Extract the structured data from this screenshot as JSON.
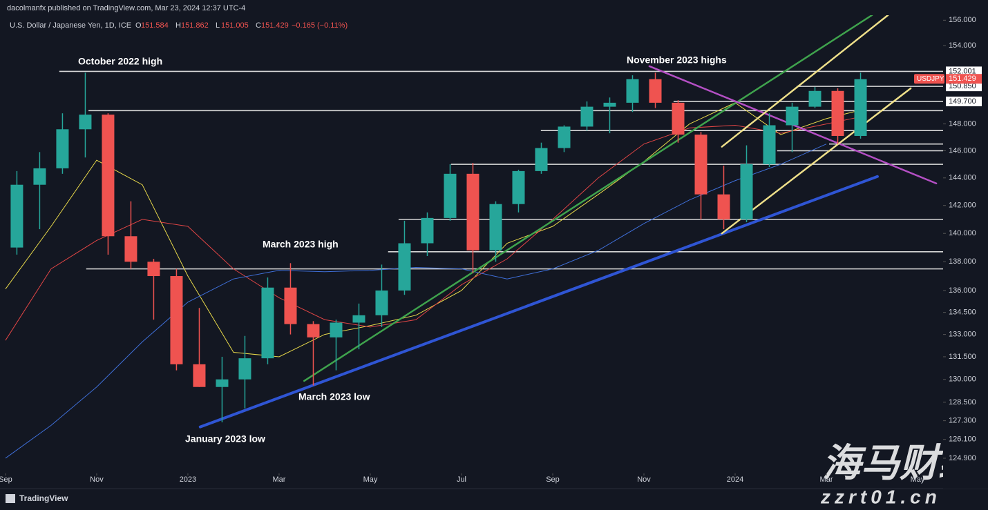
{
  "header": {
    "publisher": "dacolmanfx published on TradingView.com, Mar 23, 2024 12:37 UTC-4",
    "symbol": "U.S. Dollar / Japanese Yen, 1D, ICE",
    "ohlc": [
      {
        "key": "O",
        "value": 151.584
      },
      {
        "key": "H",
        "value": 151.862
      },
      {
        "key": "L",
        "value": 151.005
      },
      {
        "key": "C",
        "value": 151.429
      }
    ],
    "change": "−0.165 (−0.11%)"
  },
  "footer": {
    "brand": "TradingView"
  },
  "watermark": {
    "title": "海马财经",
    "site": "zzrt01.cn"
  },
  "chart_data": {
    "type": "candlestick",
    "log_scale": true,
    "up_color": "#26a69a",
    "down_color": "#ef5350",
    "xlim": [
      -0.12,
      20.56
    ],
    "xticks": [
      {
        "value": 0,
        "label": "Sep"
      },
      {
        "value": 2,
        "label": "Nov"
      },
      {
        "value": 4,
        "label": "2023"
      },
      {
        "value": 6,
        "label": "Mar"
      },
      {
        "value": 8,
        "label": "May"
      },
      {
        "value": 10,
        "label": "Jul"
      },
      {
        "value": 12,
        "label": "Sep"
      },
      {
        "value": 14,
        "label": "Nov"
      },
      {
        "value": 16,
        "label": "2024"
      },
      {
        "value": 18,
        "label": "Mar"
      },
      {
        "value": 20,
        "label": "May"
      }
    ],
    "ylim": [
      124.2,
      156.4
    ],
    "yticks": [
      {
        "value": 156,
        "label": "156.000"
      },
      {
        "value": 154,
        "label": "154.000"
      },
      {
        "value": 148,
        "label": "148.000"
      },
      {
        "value": 146,
        "label": "146.000"
      },
      {
        "value": 144,
        "label": "144.000"
      },
      {
        "value": 142,
        "label": "142.000"
      },
      {
        "value": 140,
        "label": "140.000"
      },
      {
        "value": 138,
        "label": "138.000"
      },
      {
        "value": 136,
        "label": "136.000"
      },
      {
        "value": 134.5,
        "label": "134.500"
      },
      {
        "value": 133,
        "label": "133.000"
      },
      {
        "value": 131.5,
        "label": "131.500"
      },
      {
        "value": 130,
        "label": "130.000"
      },
      {
        "value": 128.5,
        "label": "128.500"
      },
      {
        "value": 127.3,
        "label": "127.300"
      },
      {
        "value": 126.1,
        "label": "126.100"
      },
      {
        "value": 124.9,
        "label": "124.900"
      }
    ],
    "x": [
      0.25,
      0.75,
      1.25,
      1.75,
      2.25,
      2.75,
      3.25,
      3.75,
      4.25,
      4.75,
      5.25,
      5.75,
      6.25,
      6.75,
      7.25,
      7.75,
      8.25,
      8.75,
      9.25,
      9.75,
      10.25,
      10.75,
      11.25,
      11.75,
      12.25,
      12.75,
      13.25,
      13.75,
      14.25,
      14.75,
      15.25,
      15.75,
      16.25,
      16.75,
      17.25,
      17.75,
      18.25,
      18.75
    ],
    "ohlc": [
      [
        139,
        144.5,
        138.5,
        143.5
      ],
      [
        143.5,
        145.9,
        140.3,
        144.7
      ],
      [
        144.7,
        148.8,
        144.3,
        147.6
      ],
      [
        147.6,
        151.9,
        145.5,
        148.7
      ],
      [
        148.7,
        148.8,
        138.5,
        139.8
      ],
      [
        139.8,
        142.3,
        137.5,
        138
      ],
      [
        138,
        138.2,
        134,
        137
      ],
      [
        137,
        137.5,
        130.6,
        131
      ],
      [
        131,
        134.8,
        129.5,
        129.5
      ],
      [
        129.5,
        131.5,
        127.2,
        130
      ],
      [
        130,
        132.9,
        128.1,
        131.4
      ],
      [
        131.4,
        136.9,
        131,
        136.2
      ],
      [
        136.2,
        137.9,
        133,
        133.7
      ],
      [
        133.7,
        133.9,
        129.6,
        132.8
      ],
      [
        132.8,
        134,
        130.6,
        133.8
      ],
      [
        133.8,
        135.1,
        132,
        134.3
      ],
      [
        134.3,
        137.8,
        133.5,
        136
      ],
      [
        136,
        140.9,
        135.7,
        139.3
      ],
      [
        139.3,
        141.5,
        138.4,
        141.1
      ],
      [
        141.1,
        145,
        140.9,
        144.3
      ],
      [
        144.3,
        145.1,
        137.2,
        138.8
      ],
      [
        138.8,
        142.3,
        138,
        142.1
      ],
      [
        142.1,
        144.6,
        141.5,
        144.5
      ],
      [
        144.5,
        146.6,
        144.3,
        146.2
      ],
      [
        146.2,
        147.9,
        145.9,
        147.8
      ],
      [
        147.8,
        149.7,
        147.5,
        149.3
      ],
      [
        149.3,
        150,
        147.3,
        149.6
      ],
      [
        149.6,
        151.7,
        148.9,
        151.4
      ],
      [
        151.4,
        151.9,
        149.2,
        149.6
      ],
      [
        149.6,
        149.8,
        146.6,
        147.2
      ],
      [
        147.2,
        147.4,
        141,
        142.8
      ],
      [
        142.8,
        144.9,
        140.3,
        141
      ],
      [
        141,
        146.4,
        140.8,
        145
      ],
      [
        145,
        148.8,
        144.8,
        147.9
      ],
      [
        147.9,
        149.6,
        145.9,
        149.3
      ],
      [
        149.3,
        150.8,
        149.2,
        150.5
      ],
      [
        150.5,
        150.7,
        146.5,
        147.1
      ],
      [
        147.1,
        151.9,
        146.9,
        151.4
      ]
    ],
    "moving_averages": [
      {
        "color": "#e8d94a",
        "x": [
          0,
          1,
          2,
          3,
          4,
          5,
          6,
          7,
          8,
          9,
          10,
          11,
          12,
          13,
          14,
          15,
          16,
          17,
          18,
          18.7
        ],
        "values": [
          136.1,
          140.5,
          145.3,
          143.5,
          137,
          131.8,
          131.5,
          133,
          133.6,
          134.3,
          136,
          139.3,
          140.5,
          142.8,
          145.2,
          148,
          149.6,
          147.2,
          148.4,
          149
        ]
      },
      {
        "color": "#e04545",
        "x": [
          0,
          1,
          2,
          3,
          4,
          5,
          6,
          7,
          8,
          9,
          10,
          11,
          12,
          13,
          14,
          15,
          16,
          17,
          18,
          18.7
        ],
        "values": [
          132.6,
          137.5,
          139.5,
          141,
          140.5,
          137.5,
          135.5,
          134,
          133.5,
          134,
          136.4,
          138.2,
          141,
          144,
          146.5,
          147.7,
          147.9,
          147.3,
          148,
          148.5
        ]
      },
      {
        "color": "#3f6fd8",
        "x": [
          0,
          1,
          2,
          3,
          4,
          5,
          6,
          7,
          8,
          9,
          10,
          11,
          12,
          13,
          14,
          15,
          16,
          17,
          18
        ],
        "values": [
          124.9,
          127,
          129.5,
          132.5,
          135.2,
          136.8,
          137.4,
          137.3,
          137.4,
          137.6,
          137.5,
          136.8,
          137.5,
          138.8,
          140.7,
          142.4,
          143.8,
          145,
          146.5
        ]
      }
    ],
    "trendlines": [
      {
        "color": "#2f55d4",
        "width": 4,
        "x": [
          4.27,
          19.12
        ],
        "values": [
          126.9,
          144.1
        ]
      },
      {
        "color": "#3fa34d",
        "width": 2.5,
        "x": [
          6.55,
          19.0
        ],
        "values": [
          129.9,
          156.4
        ]
      },
      {
        "color": "#b44fc4",
        "width": 2.5,
        "x": [
          14.12,
          20.41
        ],
        "values": [
          152.4,
          143.6
        ]
      },
      {
        "color": "#efe08a",
        "width": 2.5,
        "x": [
          15.71,
          19.35
        ],
        "values": [
          146.3,
          156.4
        ]
      },
      {
        "color": "#efe08a",
        "width": 2.5,
        "x": [
          15.71,
          19.85
        ],
        "values": [
          140.0,
          150.7
        ]
      }
    ],
    "levels": [
      {
        "value": 152.001,
        "x_start": 1.18
      },
      {
        "value": 149.0,
        "x_start": 1.82
      },
      {
        "value": 147.5,
        "x_start": 11.74
      },
      {
        "value": 146.5,
        "x_start": 18.06
      },
      {
        "value": 146.0,
        "x_start": 16.92
      },
      {
        "value": 145.0,
        "x_start": 9.77
      },
      {
        "value": 141.0,
        "x_start": 8.62
      },
      {
        "value": 138.7,
        "x_start": 8.39
      },
      {
        "value": 137.5,
        "x_start": 1.77
      },
      {
        "value": 150.85,
        "x_start": 17.35
      },
      {
        "value": 149.7,
        "x_start": 14.65
      }
    ],
    "price_labels": [
      152.001,
      {
        "value": 150.85,
        "label": "150.850"
      },
      {
        "value": 149.7,
        "label": "149.700"
      }
    ],
    "last": {
      "name": "USDJPY",
      "value": 151.429
    },
    "annotations": [
      "October 2022 high",
      "November 2023 highs",
      "March 2023 high",
      "March 2023 low",
      "January 2023 low"
    ]
  }
}
